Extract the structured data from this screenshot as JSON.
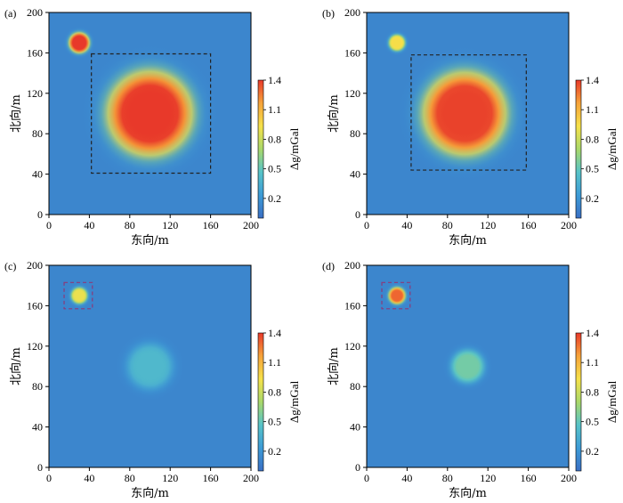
{
  "chart_data": [
    {
      "type": "heatmap",
      "panel_label": "(a)",
      "xlabel": "东向/m",
      "ylabel": "北向/m",
      "xlim": [
        0,
        200
      ],
      "ylim": [
        0,
        200
      ],
      "xticks": [
        "0",
        "40",
        "80",
        "120",
        "160",
        "200"
      ],
      "yticks": [
        "0",
        "40",
        "80",
        "120",
        "160",
        "200"
      ],
      "colorbar": {
        "label": "Δg/mGal",
        "ticks": [
          "0.2",
          "0.5",
          "0.8",
          "1.1",
          "1.4"
        ],
        "range": [
          0.0,
          1.4
        ]
      },
      "sources": [
        {
          "x": 100,
          "y": 100,
          "peak": 1.4,
          "radius": 46
        },
        {
          "x": 30,
          "y": 170,
          "peak": 1.45,
          "radius": 11
        }
      ],
      "boxes": [
        {
          "x0": 42,
          "x1": 160,
          "y0": 41,
          "y1": 159,
          "color": "#222222"
        }
      ]
    },
    {
      "type": "heatmap",
      "panel_label": "(b)",
      "xlabel": "东向/m",
      "ylabel": "北向/m",
      "xlim": [
        0,
        200
      ],
      "ylim": [
        0,
        200
      ],
      "xticks": [
        "0",
        "40",
        "80",
        "120",
        "160",
        "200"
      ],
      "yticks": [
        "0",
        "40",
        "80",
        "120",
        "160",
        "200"
      ],
      "colorbar": {
        "label": "Δg/mGal",
        "ticks": [
          "0.2",
          "0.5",
          "0.8",
          "1.1",
          "1.4"
        ],
        "range": [
          0.0,
          1.4
        ]
      },
      "sources": [
        {
          "x": 97,
          "y": 100,
          "peak": 1.38,
          "radius": 45
        },
        {
          "x": 30,
          "y": 170,
          "peak": 0.95,
          "radius": 9
        }
      ],
      "boxes": [
        {
          "x0": 44,
          "x1": 158,
          "y0": 44,
          "y1": 158,
          "color": "#222222"
        }
      ]
    },
    {
      "type": "heatmap",
      "panel_label": "(c)",
      "xlabel": "东向/m",
      "ylabel": "北向/m",
      "xlim": [
        0,
        200
      ],
      "ylim": [
        0,
        200
      ],
      "xticks": [
        "0",
        "40",
        "80",
        "120",
        "160",
        "200"
      ],
      "yticks": [
        "0",
        "40",
        "80",
        "120",
        "160",
        "200"
      ],
      "colorbar": {
        "label": "Δg/mGal",
        "ticks": [
          "0.2",
          "0.5",
          "0.8",
          "1.1",
          "1.4"
        ],
        "range": [
          0.0,
          1.4
        ]
      },
      "sources": [
        {
          "x": 30,
          "y": 170,
          "peak": 0.9,
          "radius": 9
        },
        {
          "x": 100,
          "y": 100,
          "peak": 0.4,
          "radius": 25
        }
      ],
      "boxes": [
        {
          "x0": 15,
          "x1": 43,
          "y0": 157,
          "y1": 183,
          "color": "#8a3a7a"
        }
      ]
    },
    {
      "type": "heatmap",
      "panel_label": "(d)",
      "xlabel": "东向/m",
      "ylabel": "北向/m",
      "xlim": [
        0,
        200
      ],
      "ylim": [
        0,
        200
      ],
      "xticks": [
        "0",
        "40",
        "80",
        "120",
        "160",
        "200"
      ],
      "yticks": [
        "0",
        "40",
        "80",
        "120",
        "160",
        "200"
      ],
      "colorbar": {
        "label": "Δg/mGal",
        "ticks": [
          "0.2",
          "0.5",
          "0.8",
          "1.1",
          "1.4"
        ],
        "range": [
          0.0,
          1.4
        ]
      },
      "sources": [
        {
          "x": 30,
          "y": 170,
          "peak": 1.3,
          "radius": 9
        },
        {
          "x": 100,
          "y": 100,
          "peak": 0.55,
          "radius": 18
        }
      ],
      "boxes": [
        {
          "x0": 15,
          "x1": 43,
          "y0": 157,
          "y1": 183,
          "color": "#8a3a7a"
        }
      ]
    }
  ],
  "colormap": [
    "#3a6fc4",
    "#3d9bd6",
    "#57c3c8",
    "#a9d86a",
    "#f6e14a",
    "#f6a33a",
    "#e8392a"
  ],
  "background_value": 0.12
}
